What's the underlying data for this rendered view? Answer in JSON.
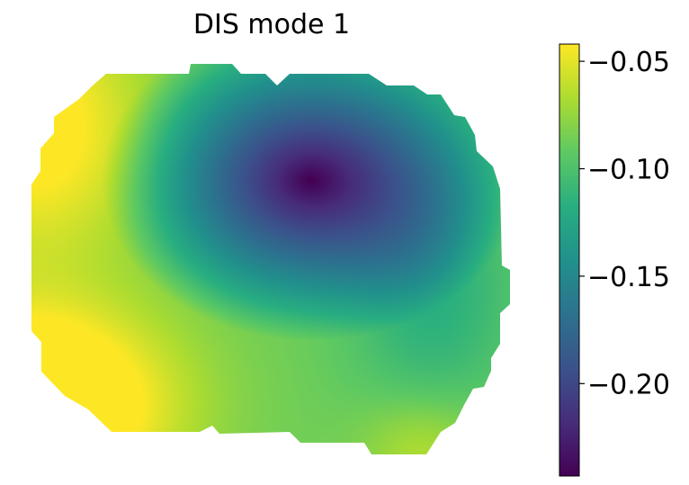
{
  "chart_data": {
    "type": "heatmap",
    "title": "DIS mode 1",
    "colormap": "viridis",
    "colorbar": {
      "range": [
        -0.243,
        -0.042
      ],
      "ticks": [
        -0.05,
        -0.1,
        -0.15,
        -0.2
      ],
      "tick_labels": [
        "−0.05",
        "−0.10",
        "−0.15",
        "−0.20"
      ]
    },
    "field": {
      "minimum": {
        "value": -0.243,
        "near": "upper-center-right"
      },
      "maxima": [
        {
          "value": -0.045,
          "near": "lower-left"
        },
        {
          "value": -0.06,
          "near": "upper-left"
        }
      ]
    },
    "axes_visible": false,
    "grid": false
  }
}
